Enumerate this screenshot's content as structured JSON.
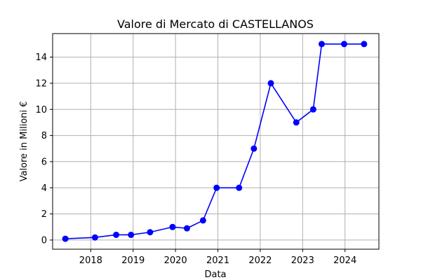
{
  "chart_data": {
    "type": "line",
    "title": "Valore di Mercato di CASTELLANOS",
    "xlabel": "Data",
    "ylabel": "Valore in Milioni €",
    "x_ticks": [
      "2018",
      "2019",
      "2020",
      "2021",
      "2022",
      "2023",
      "2024"
    ],
    "y_ticks": [
      "0",
      "2",
      "4",
      "6",
      "8",
      "10",
      "12",
      "14"
    ],
    "xlim": [
      2017.1,
      2024.8
    ],
    "ylim": [
      -0.7,
      15.8
    ],
    "grid": true,
    "series": [
      {
        "name": "Valore di Mercato",
        "color": "#0000ff",
        "marker": "circle",
        "points": [
          {
            "x": 2017.4,
            "y": 0.1
          },
          {
            "x": 2018.1,
            "y": 0.2
          },
          {
            "x": 2018.6,
            "y": 0.4
          },
          {
            "x": 2018.95,
            "y": 0.4
          },
          {
            "x": 2019.4,
            "y": 0.6
          },
          {
            "x": 2019.93,
            "y": 1.0
          },
          {
            "x": 2020.27,
            "y": 0.9
          },
          {
            "x": 2020.65,
            "y": 1.5
          },
          {
            "x": 2020.97,
            "y": 4.0
          },
          {
            "x": 2021.5,
            "y": 4.0
          },
          {
            "x": 2021.85,
            "y": 7.0
          },
          {
            "x": 2022.25,
            "y": 12.0
          },
          {
            "x": 2022.85,
            "y": 9.0
          },
          {
            "x": 2023.25,
            "y": 10.0
          },
          {
            "x": 2023.45,
            "y": 15.0
          },
          {
            "x": 2023.98,
            "y": 15.0
          },
          {
            "x": 2024.45,
            "y": 15.0
          }
        ]
      }
    ]
  }
}
